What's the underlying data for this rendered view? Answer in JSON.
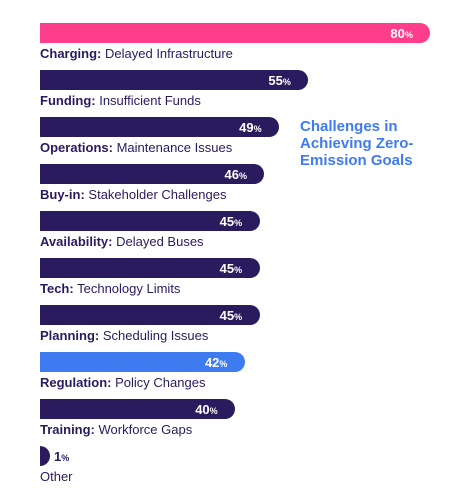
{
  "chart_data": {
    "type": "bar",
    "orientation": "horizontal",
    "title": "Challenges in Achieving Zero-Emission Goals",
    "value_suffix": "%",
    "xlim": [
      0,
      100
    ],
    "items": [
      {
        "category": "Charging",
        "detail": "Delayed Infrastructure",
        "value": 80,
        "color": "#ff3d8b"
      },
      {
        "category": "Funding",
        "detail": "Insufficient Funds",
        "value": 55,
        "color": "#2a1a5e"
      },
      {
        "category": "Operations",
        "detail": "Maintenance Issues",
        "value": 49,
        "color": "#2a1a5e"
      },
      {
        "category": "Buy-in",
        "detail": "Stakeholder Challenges",
        "value": 46,
        "color": "#2a1a5e"
      },
      {
        "category": "Availability",
        "detail": "Delayed Buses",
        "value": 45,
        "color": "#2a1a5e"
      },
      {
        "category": "Tech",
        "detail": "Technology Limits",
        "value": 45,
        "color": "#2a1a5e"
      },
      {
        "category": "Planning",
        "detail": "Scheduling Issues",
        "value": 45,
        "color": "#2a1a5e"
      },
      {
        "category": "Regulation",
        "detail": "Policy Changes",
        "value": 42,
        "color": "#3f7bf0"
      },
      {
        "category": "Training",
        "detail": "Workforce Gaps",
        "value": 40,
        "color": "#2a1a5e"
      },
      {
        "category": "",
        "detail": "Other",
        "value": 1,
        "color": "#2a1a5e"
      }
    ]
  }
}
